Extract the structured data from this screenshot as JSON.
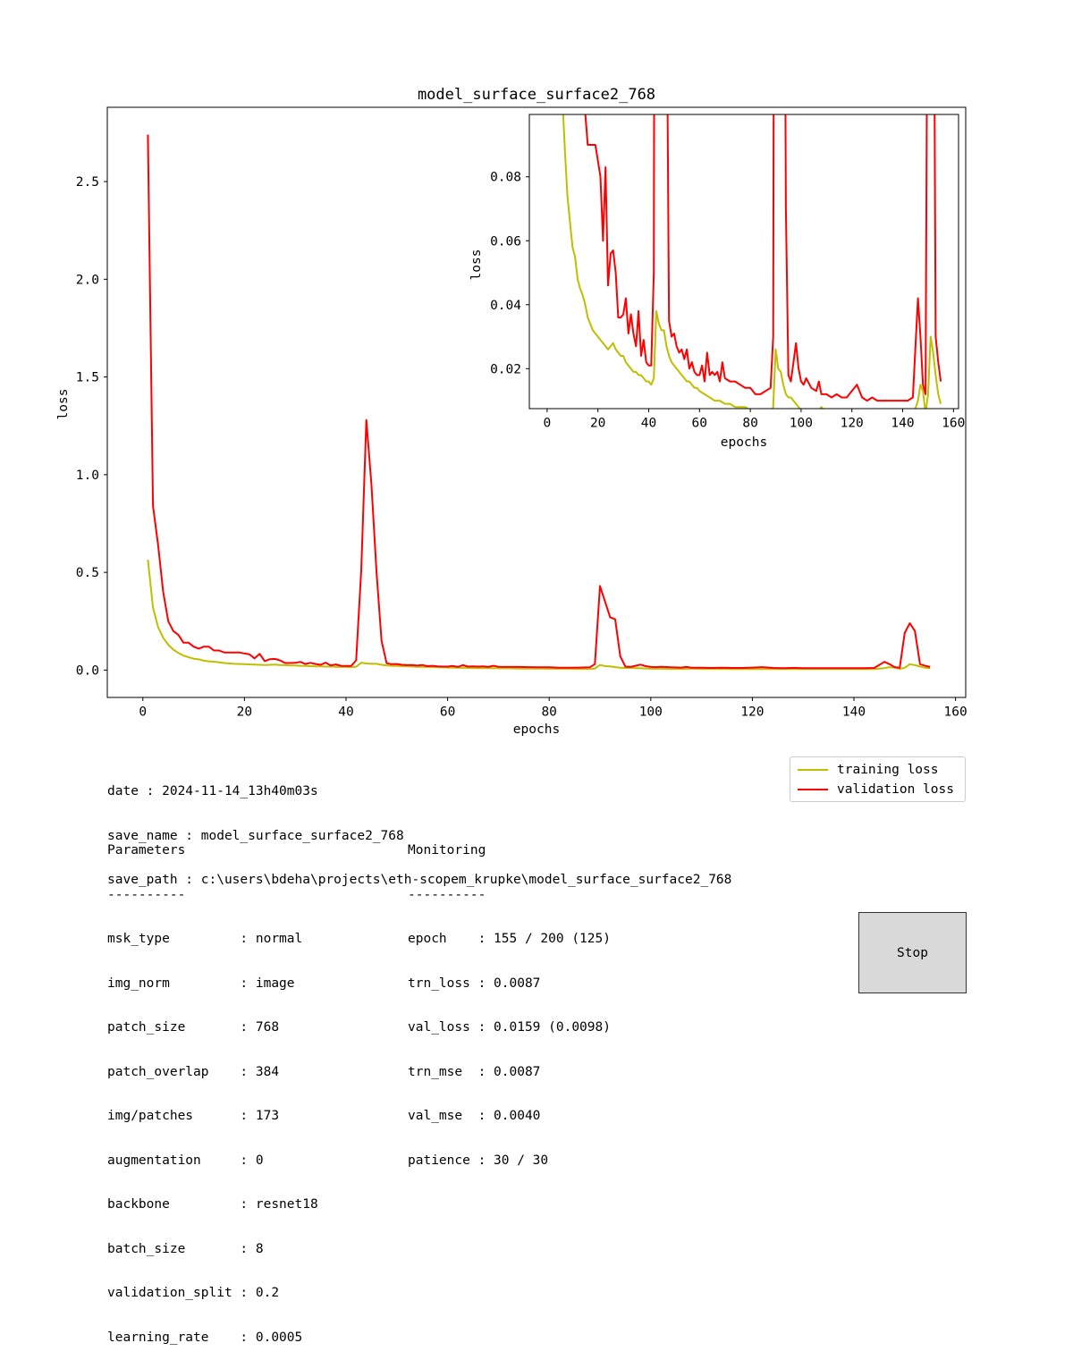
{
  "chart_data": [
    {
      "type": "line",
      "title": "model_surface_surface2_768",
      "xlabel": "epochs",
      "ylabel": "loss",
      "xlim": [
        -7,
        162
      ],
      "ylim": [
        -0.14,
        2.88
      ],
      "xticks": [
        0,
        20,
        40,
        60,
        80,
        100,
        120,
        140,
        160
      ],
      "yticks": [
        0.0,
        0.5,
        1.0,
        1.5,
        2.0,
        2.5
      ],
      "xtick_labels": [
        "0",
        "20",
        "40",
        "60",
        "80",
        "100",
        "120",
        "140",
        "160"
      ],
      "ytick_labels": [
        "0.0",
        "0.5",
        "1.0",
        "1.5",
        "2.0",
        "2.5"
      ],
      "grid": false,
      "legend": "below-right",
      "series": [
        {
          "name": "training loss",
          "color": "#bfbf00",
          "points": [
            [
              1,
              0.565
            ],
            [
              2,
              0.32
            ],
            [
              3,
              0.22
            ],
            [
              4,
              0.165
            ],
            [
              5,
              0.13
            ],
            [
              6,
              0.105
            ],
            [
              7,
              0.088
            ],
            [
              8,
              0.074
            ],
            [
              9,
              0.066
            ],
            [
              10,
              0.058
            ],
            [
              11,
              0.055
            ],
            [
              12,
              0.048
            ],
            [
              13,
              0.045
            ],
            [
              14,
              0.043
            ],
            [
              15,
              0.04
            ],
            [
              16,
              0.036
            ],
            [
              17,
              0.034
            ],
            [
              18,
              0.032
            ],
            [
              19,
              0.031
            ],
            [
              20,
              0.03
            ],
            [
              21,
              0.029
            ],
            [
              22,
              0.028
            ],
            [
              23,
              0.027
            ],
            [
              24,
              0.026
            ],
            [
              25,
              0.027
            ],
            [
              26,
              0.028
            ],
            [
              27,
              0.026
            ],
            [
              28,
              0.025
            ],
            [
              29,
              0.024
            ],
            [
              30,
              0.024
            ],
            [
              31,
              0.022
            ],
            [
              32,
              0.021
            ],
            [
              33,
              0.02
            ],
            [
              34,
              0.019
            ],
            [
              35,
              0.019
            ],
            [
              36,
              0.018
            ],
            [
              37,
              0.018
            ],
            [
              38,
              0.017
            ],
            [
              39,
              0.016
            ],
            [
              40,
              0.016
            ],
            [
              41,
              0.015
            ],
            [
              42,
              0.017
            ],
            [
              43,
              0.038
            ],
            [
              44,
              0.034
            ],
            [
              45,
              0.032
            ],
            [
              46,
              0.032
            ],
            [
              47,
              0.027
            ],
            [
              48,
              0.024
            ],
            [
              49,
              0.022
            ],
            [
              50,
              0.021
            ],
            [
              51,
              0.02
            ],
            [
              52,
              0.019
            ],
            [
              53,
              0.018
            ],
            [
              54,
              0.017
            ],
            [
              55,
              0.016
            ],
            [
              56,
              0.016
            ],
            [
              57,
              0.015
            ],
            [
              58,
              0.014
            ],
            [
              59,
              0.014
            ],
            [
              60,
              0.013
            ],
            [
              62,
              0.012
            ],
            [
              64,
              0.011
            ],
            [
              66,
              0.01
            ],
            [
              68,
              0.01
            ],
            [
              70,
              0.009
            ],
            [
              72,
              0.009
            ],
            [
              74,
              0.008
            ],
            [
              76,
              0.008
            ],
            [
              78,
              0.008
            ],
            [
              80,
              0.007
            ],
            [
              82,
              0.007
            ],
            [
              84,
              0.007
            ],
            [
              86,
              0.006
            ],
            [
              88,
              0.006
            ],
            [
              89,
              0.008
            ],
            [
              90,
              0.026
            ],
            [
              91,
              0.02
            ],
            [
              92,
              0.019
            ],
            [
              93,
              0.015
            ],
            [
              94,
              0.012
            ],
            [
              95,
              0.011
            ],
            [
              96,
              0.011
            ],
            [
              98,
              0.009
            ],
            [
              100,
              0.007
            ],
            [
              102,
              0.007
            ],
            [
              104,
              0.006
            ],
            [
              106,
              0.006
            ],
            [
              108,
              0.008
            ],
            [
              110,
              0.006
            ],
            [
              112,
              0.006
            ],
            [
              114,
              0.006
            ],
            [
              116,
              0.005
            ],
            [
              118,
              0.005
            ],
            [
              120,
              0.006
            ],
            [
              122,
              0.005
            ],
            [
              124,
              0.005
            ],
            [
              126,
              0.005
            ],
            [
              128,
              0.005
            ],
            [
              130,
              0.005
            ],
            [
              132,
              0.005
            ],
            [
              134,
              0.005
            ],
            [
              136,
              0.005
            ],
            [
              138,
              0.005
            ],
            [
              140,
              0.005
            ],
            [
              142,
              0.005
            ],
            [
              144,
              0.005
            ],
            [
              146,
              0.01
            ],
            [
              147,
              0.015
            ],
            [
              148,
              0.013
            ],
            [
              149,
              0.006
            ],
            [
              150,
              0.012
            ],
            [
              151,
              0.03
            ],
            [
              152,
              0.025
            ],
            [
              153,
              0.018
            ],
            [
              154,
              0.012
            ],
            [
              155,
              0.009
            ]
          ]
        },
        {
          "name": "validation loss",
          "color": "#ff0000",
          "points": [
            [
              1,
              2.74
            ],
            [
              2,
              0.84
            ],
            [
              3,
              0.64
            ],
            [
              4,
              0.4
            ],
            [
              5,
              0.25
            ],
            [
              6,
              0.2
            ],
            [
              7,
              0.18
            ],
            [
              8,
              0.14
            ],
            [
              9,
              0.14
            ],
            [
              10,
              0.12
            ],
            [
              11,
              0.11
            ],
            [
              12,
              0.12
            ],
            [
              13,
              0.12
            ],
            [
              14,
              0.1
            ],
            [
              15,
              0.1
            ],
            [
              16,
              0.09
            ],
            [
              17,
              0.09
            ],
            [
              18,
              0.09
            ],
            [
              19,
              0.09
            ],
            [
              20,
              0.085
            ],
            [
              21,
              0.08
            ],
            [
              22,
              0.06
            ],
            [
              23,
              0.083
            ],
            [
              24,
              0.046
            ],
            [
              25,
              0.056
            ],
            [
              26,
              0.057
            ],
            [
              27,
              0.05
            ],
            [
              28,
              0.036
            ],
            [
              29,
              0.036
            ],
            [
              30,
              0.037
            ],
            [
              31,
              0.042
            ],
            [
              32,
              0.031
            ],
            [
              33,
              0.037
            ],
            [
              34,
              0.031
            ],
            [
              35,
              0.027
            ],
            [
              36,
              0.038
            ],
            [
              37,
              0.024
            ],
            [
              38,
              0.029
            ],
            [
              39,
              0.022
            ],
            [
              40,
              0.021
            ],
            [
              41,
              0.021
            ],
            [
              42,
              0.05
            ],
            [
              43,
              0.51
            ],
            [
              44,
              1.28
            ],
            [
              45,
              0.95
            ],
            [
              46,
              0.5
            ],
            [
              47,
              0.15
            ],
            [
              48,
              0.035
            ],
            [
              49,
              0.03
            ],
            [
              50,
              0.031
            ],
            [
              51,
              0.027
            ],
            [
              52,
              0.025
            ],
            [
              53,
              0.026
            ],
            [
              54,
              0.023
            ],
            [
              55,
              0.026
            ],
            [
              56,
              0.02
            ],
            [
              57,
              0.022
            ],
            [
              58,
              0.019
            ],
            [
              59,
              0.018
            ],
            [
              60,
              0.018
            ],
            [
              61,
              0.021
            ],
            [
              62,
              0.016
            ],
            [
              63,
              0.025
            ],
            [
              64,
              0.018
            ],
            [
              65,
              0.019
            ],
            [
              66,
              0.018
            ],
            [
              67,
              0.019
            ],
            [
              68,
              0.016
            ],
            [
              69,
              0.022
            ],
            [
              70,
              0.017
            ],
            [
              72,
              0.016
            ],
            [
              74,
              0.016
            ],
            [
              76,
              0.015
            ],
            [
              78,
              0.014
            ],
            [
              80,
              0.014
            ],
            [
              82,
              0.012
            ],
            [
              84,
              0.012
            ],
            [
              86,
              0.013
            ],
            [
              88,
              0.014
            ],
            [
              89,
              0.03
            ],
            [
              90,
              0.43
            ],
            [
              91,
              0.35
            ],
            [
              92,
              0.27
            ],
            [
              93,
              0.26
            ],
            [
              94,
              0.07
            ],
            [
              95,
              0.018
            ],
            [
              96,
              0.016
            ],
            [
              97,
              0.022
            ],
            [
              98,
              0.028
            ],
            [
              99,
              0.02
            ],
            [
              100,
              0.016
            ],
            [
              101,
              0.015
            ],
            [
              102,
              0.017
            ],
            [
              104,
              0.014
            ],
            [
              106,
              0.013
            ],
            [
              107,
              0.016
            ],
            [
              108,
              0.012
            ],
            [
              110,
              0.012
            ],
            [
              112,
              0.011
            ],
            [
              114,
              0.012
            ],
            [
              116,
              0.011
            ],
            [
              118,
              0.011
            ],
            [
              120,
              0.013
            ],
            [
              122,
              0.015
            ],
            [
              124,
              0.011
            ],
            [
              126,
              0.01
            ],
            [
              128,
              0.011
            ],
            [
              130,
              0.01
            ],
            [
              132,
              0.01
            ],
            [
              134,
              0.01
            ],
            [
              136,
              0.01
            ],
            [
              138,
              0.01
            ],
            [
              140,
              0.01
            ],
            [
              142,
              0.01
            ],
            [
              144,
              0.011
            ],
            [
              146,
              0.042
            ],
            [
              147,
              0.03
            ],
            [
              148,
              0.015
            ],
            [
              149,
              0.012
            ],
            [
              150,
              0.19
            ],
            [
              151,
              0.24
            ],
            [
              152,
              0.2
            ],
            [
              153,
              0.03
            ],
            [
              154,
              0.022
            ],
            [
              155,
              0.016
            ]
          ]
        }
      ]
    },
    {
      "type": "line",
      "title": "",
      "xlabel": "epochs",
      "ylabel": "loss",
      "xlim": [
        -7,
        162
      ],
      "ylim": [
        0.0075,
        0.0995
      ],
      "xticks": [
        0,
        20,
        40,
        60,
        80,
        100,
        120,
        140,
        160
      ],
      "yticks": [
        0.02,
        0.04,
        0.06,
        0.08
      ],
      "xtick_labels": [
        "0",
        "20",
        "40",
        "60",
        "80",
        "100",
        "120",
        "140",
        "160"
      ],
      "ytick_labels": [
        "0.02",
        "0.04",
        "0.06",
        "0.08"
      ],
      "grid": false,
      "inset": true,
      "series_ref": "same as main chart (zoomed view)"
    }
  ],
  "legend": {
    "training_label": "training loss",
    "validation_label": "validation loss"
  },
  "info": {
    "lines": [
      "date : 2024-11-14_13h40m03s",
      "save_name : model_surface_surface2_768",
      "save_path : c:\\users\\bdeha\\projects\\eth-scopem_krupke\\model_surface_surface2_768"
    ]
  },
  "parameters": {
    "heading": "Parameters",
    "rule": "----------",
    "lines": [
      "msk_type         : normal",
      "img_norm         : image",
      "patch_size       : 768",
      "patch_overlap    : 384",
      "img/patches      : 173",
      "augmentation     : 0",
      "backbone         : resnet18",
      "batch_size       : 8",
      "validation_split : 0.2",
      "learning_rate    : 0.0005"
    ]
  },
  "monitoring": {
    "heading": "Monitoring",
    "rule": "----------",
    "lines": [
      "epoch    : 155 / 200 (125)",
      "trn_loss : 0.0087",
      "val_loss : 0.0159 (0.0098)",
      "trn_mse  : 0.0087",
      "val_mse  : 0.0040",
      "patience : 30 / 30"
    ]
  },
  "stop_button": {
    "label": "Stop"
  }
}
